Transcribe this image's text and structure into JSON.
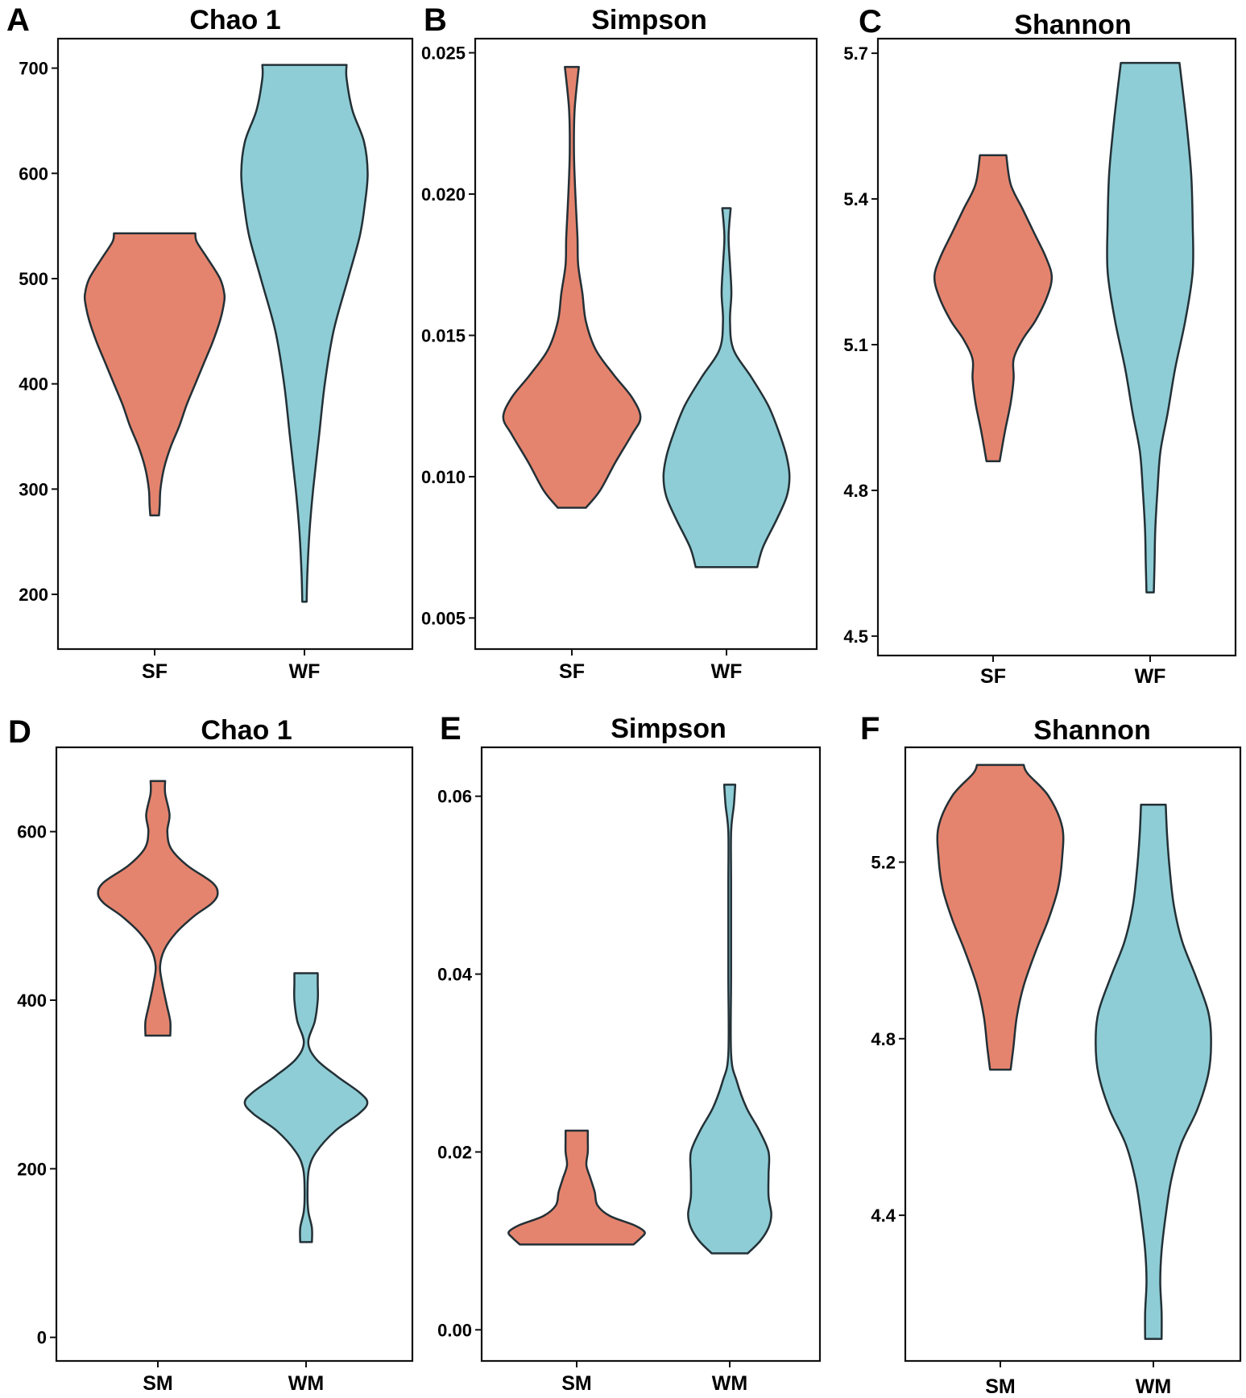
{
  "colors": {
    "summer": "#E5846E",
    "winter": "#8ECDD5",
    "outline": "#233036"
  },
  "chart_data": [
    {
      "type": "violin",
      "letter": "A",
      "title": "Chao 1",
      "yticks": [
        200,
        300,
        400,
        500,
        600,
        700
      ],
      "yticklabels": [
        "200",
        "300",
        "400",
        "500",
        "600",
        "700"
      ],
      "ylim": [
        148,
        728
      ],
      "series": [
        {
          "name": "SF",
          "color": "#E5846E",
          "min": 275,
          "max": 543,
          "profile": [
            [
              275,
              0.06
            ],
            [
              285,
              0.07
            ],
            [
              300,
              0.08
            ],
            [
              320,
              0.13
            ],
            [
              340,
              0.22
            ],
            [
              360,
              0.34
            ],
            [
              380,
              0.44
            ],
            [
              400,
              0.56
            ],
            [
              420,
              0.68
            ],
            [
              440,
              0.8
            ],
            [
              460,
              0.9
            ],
            [
              475,
              0.95
            ],
            [
              485,
              0.96
            ],
            [
              500,
              0.9
            ],
            [
              520,
              0.72
            ],
            [
              535,
              0.58
            ],
            [
              543,
              0.56
            ]
          ]
        },
        {
          "name": "WF",
          "color": "#8ECDD5",
          "min": 193,
          "max": 703,
          "profile": [
            [
              193,
              0.03
            ],
            [
              220,
              0.04
            ],
            [
              260,
              0.07
            ],
            [
              300,
              0.12
            ],
            [
              350,
              0.2
            ],
            [
              400,
              0.28
            ],
            [
              450,
              0.4
            ],
            [
              500,
              0.6
            ],
            [
              540,
              0.76
            ],
            [
              570,
              0.83
            ],
            [
              600,
              0.87
            ],
            [
              630,
              0.82
            ],
            [
              660,
              0.66
            ],
            [
              690,
              0.58
            ],
            [
              703,
              0.58
            ]
          ]
        }
      ]
    },
    {
      "type": "violin",
      "letter": "B",
      "title": "Simpson",
      "yticks": [
        0.005,
        0.01,
        0.015,
        0.02,
        0.025
      ],
      "yticklabels": [
        "0.005",
        "0.010",
        "0.015",
        "0.020",
        "0.025"
      ],
      "ylim": [
        0.0039,
        0.0255
      ],
      "series": [
        {
          "name": "SF",
          "color": "#E5846E",
          "min": 0.0089,
          "max": 0.0245,
          "profile": [
            [
              0.0089,
              0.2
            ],
            [
              0.0095,
              0.4
            ],
            [
              0.0105,
              0.62
            ],
            [
              0.0115,
              0.86
            ],
            [
              0.0121,
              0.98
            ],
            [
              0.0128,
              0.86
            ],
            [
              0.0136,
              0.6
            ],
            [
              0.0145,
              0.34
            ],
            [
              0.0155,
              0.2
            ],
            [
              0.0165,
              0.15
            ],
            [
              0.0175,
              0.09
            ],
            [
              0.0185,
              0.08
            ],
            [
              0.02,
              0.05
            ],
            [
              0.0215,
              0.03
            ],
            [
              0.023,
              0.04
            ],
            [
              0.0245,
              0.1
            ]
          ]
        },
        {
          "name": "WF",
          "color": "#8ECDD5",
          "min": 0.0068,
          "max": 0.0195,
          "profile": [
            [
              0.0068,
              0.44
            ],
            [
              0.0075,
              0.52
            ],
            [
              0.0085,
              0.72
            ],
            [
              0.0093,
              0.86
            ],
            [
              0.01,
              0.9
            ],
            [
              0.0107,
              0.86
            ],
            [
              0.0115,
              0.76
            ],
            [
              0.0125,
              0.6
            ],
            [
              0.0135,
              0.36
            ],
            [
              0.0145,
              0.1
            ],
            [
              0.0155,
              0.05
            ],
            [
              0.0165,
              0.07
            ],
            [
              0.0175,
              0.05
            ],
            [
              0.0185,
              0.03
            ],
            [
              0.0195,
              0.06
            ]
          ]
        }
      ]
    },
    {
      "type": "violin",
      "letter": "C",
      "title": "Shannon",
      "yticks": [
        4.5,
        4.8,
        5.1,
        5.4,
        5.7
      ],
      "yticklabels": [
        "4.5",
        "4.8",
        "5.1",
        "5.4",
        "5.7"
      ],
      "ylim": [
        4.46,
        5.73
      ],
      "series": [
        {
          "name": "SF",
          "color": "#E5846E",
          "min": 4.86,
          "max": 5.49,
          "profile": [
            [
              4.86,
              0.09
            ],
            [
              4.92,
              0.16
            ],
            [
              4.98,
              0.24
            ],
            [
              5.03,
              0.28
            ],
            [
              5.07,
              0.28
            ],
            [
              5.11,
              0.4
            ],
            [
              5.15,
              0.58
            ],
            [
              5.2,
              0.74
            ],
            [
              5.24,
              0.8
            ],
            [
              5.28,
              0.72
            ],
            [
              5.33,
              0.56
            ],
            [
              5.38,
              0.4
            ],
            [
              5.43,
              0.24
            ],
            [
              5.49,
              0.18
            ]
          ]
        },
        {
          "name": "WF",
          "color": "#8ECDD5",
          "min": 4.59,
          "max": 5.68,
          "profile": [
            [
              4.59,
              0.05
            ],
            [
              4.65,
              0.06
            ],
            [
              4.72,
              0.07
            ],
            [
              4.8,
              0.1
            ],
            [
              4.88,
              0.14
            ],
            [
              4.96,
              0.24
            ],
            [
              5.05,
              0.34
            ],
            [
              5.15,
              0.48
            ],
            [
              5.25,
              0.58
            ],
            [
              5.35,
              0.58
            ],
            [
              5.45,
              0.56
            ],
            [
              5.55,
              0.5
            ],
            [
              5.63,
              0.44
            ],
            [
              5.68,
              0.4
            ]
          ]
        }
      ]
    },
    {
      "type": "violin",
      "letter": "D",
      "title": "Chao 1",
      "yticks": [
        0,
        200,
        400,
        600
      ],
      "yticklabels": [
        "0",
        "200",
        "400",
        "600"
      ],
      "ylim": [
        -28,
        700
      ],
      "series": [
        {
          "name": "SM",
          "color": "#E5846E",
          "min": 358,
          "max": 660,
          "profile": [
            [
              358,
              0.17
            ],
            [
              375,
              0.17
            ],
            [
              395,
              0.12
            ],
            [
              420,
              0.06
            ],
            [
              440,
              0.03
            ],
            [
              460,
              0.09
            ],
            [
              480,
              0.25
            ],
            [
              500,
              0.5
            ],
            [
              515,
              0.74
            ],
            [
              527,
              0.82
            ],
            [
              540,
              0.74
            ],
            [
              560,
              0.4
            ],
            [
              580,
              0.18
            ],
            [
              600,
              0.13
            ],
            [
              620,
              0.16
            ],
            [
              645,
              0.1
            ],
            [
              660,
              0.1
            ]
          ]
        },
        {
          "name": "WM",
          "color": "#8ECDD5",
          "min": 113,
          "max": 432,
          "profile": [
            [
              113,
              0.08
            ],
            [
              130,
              0.08
            ],
            [
              150,
              0.03
            ],
            [
              175,
              0.02
            ],
            [
              200,
              0.04
            ],
            [
              220,
              0.14
            ],
            [
              245,
              0.4
            ],
            [
              265,
              0.72
            ],
            [
              278,
              0.84
            ],
            [
              290,
              0.74
            ],
            [
              310,
              0.42
            ],
            [
              330,
              0.14
            ],
            [
              350,
              0.03
            ],
            [
              375,
              0.12
            ],
            [
              400,
              0.16
            ],
            [
              420,
              0.16
            ],
            [
              432,
              0.16
            ]
          ]
        }
      ]
    },
    {
      "type": "violin",
      "letter": "E",
      "title": "Simpson",
      "yticks": [
        0.0,
        0.02,
        0.04,
        0.06
      ],
      "yticklabels": [
        "0.00",
        "0.02",
        "0.04",
        "0.06"
      ],
      "ylim": [
        -0.0035,
        0.0655
      ],
      "series": [
        {
          "name": "SM",
          "color": "#E5846E",
          "min": 0.0096,
          "max": 0.0224,
          "profile": [
            [
              0.0096,
              0.82
            ],
            [
              0.0103,
              0.92
            ],
            [
              0.011,
              0.98
            ],
            [
              0.0118,
              0.82
            ],
            [
              0.0128,
              0.48
            ],
            [
              0.014,
              0.3
            ],
            [
              0.0155,
              0.26
            ],
            [
              0.017,
              0.2
            ],
            [
              0.0185,
              0.14
            ],
            [
              0.02,
              0.16
            ],
            [
              0.0215,
              0.16
            ],
            [
              0.0224,
              0.16
            ]
          ]
        },
        {
          "name": "WM",
          "color": "#8ECDD5",
          "min": 0.0086,
          "max": 0.0613,
          "profile": [
            [
              0.0086,
              0.26
            ],
            [
              0.01,
              0.44
            ],
            [
              0.0115,
              0.56
            ],
            [
              0.013,
              0.6
            ],
            [
              0.015,
              0.56
            ],
            [
              0.0175,
              0.56
            ],
            [
              0.02,
              0.56
            ],
            [
              0.0225,
              0.42
            ],
            [
              0.025,
              0.24
            ],
            [
              0.028,
              0.1
            ],
            [
              0.031,
              0.02
            ],
            [
              0.04,
              0.02
            ],
            [
              0.05,
              0.02
            ],
            [
              0.056,
              0.02
            ],
            [
              0.059,
              0.06
            ],
            [
              0.0613,
              0.08
            ]
          ]
        }
      ]
    },
    {
      "type": "violin",
      "letter": "F",
      "title": "Shannon",
      "yticks": [
        4.4,
        4.8,
        5.2
      ],
      "yticklabels": [
        "4.4",
        "4.8",
        "5.2"
      ],
      "ylim": [
        4.07,
        5.46
      ],
      "series": [
        {
          "name": "SM",
          "color": "#E5846E",
          "min": 4.73,
          "max": 5.42,
          "profile": [
            [
              4.73,
              0.15
            ],
            [
              4.78,
              0.19
            ],
            [
              4.85,
              0.24
            ],
            [
              4.92,
              0.34
            ],
            [
              5.0,
              0.52
            ],
            [
              5.07,
              0.7
            ],
            [
              5.14,
              0.84
            ],
            [
              5.21,
              0.9
            ],
            [
              5.28,
              0.9
            ],
            [
              5.35,
              0.7
            ],
            [
              5.4,
              0.4
            ],
            [
              5.42,
              0.34
            ]
          ]
        },
        {
          "name": "WM",
          "color": "#8ECDD5",
          "min": 4.12,
          "max": 5.33,
          "profile": [
            [
              4.12,
              0.12
            ],
            [
              4.18,
              0.12
            ],
            [
              4.25,
              0.1
            ],
            [
              4.32,
              0.12
            ],
            [
              4.4,
              0.18
            ],
            [
              4.48,
              0.26
            ],
            [
              4.56,
              0.4
            ],
            [
              4.64,
              0.64
            ],
            [
              4.72,
              0.8
            ],
            [
              4.79,
              0.84
            ],
            [
              4.86,
              0.8
            ],
            [
              4.94,
              0.62
            ],
            [
              5.02,
              0.42
            ],
            [
              5.1,
              0.3
            ],
            [
              5.18,
              0.24
            ],
            [
              5.26,
              0.2
            ],
            [
              5.33,
              0.18
            ]
          ]
        }
      ]
    }
  ]
}
